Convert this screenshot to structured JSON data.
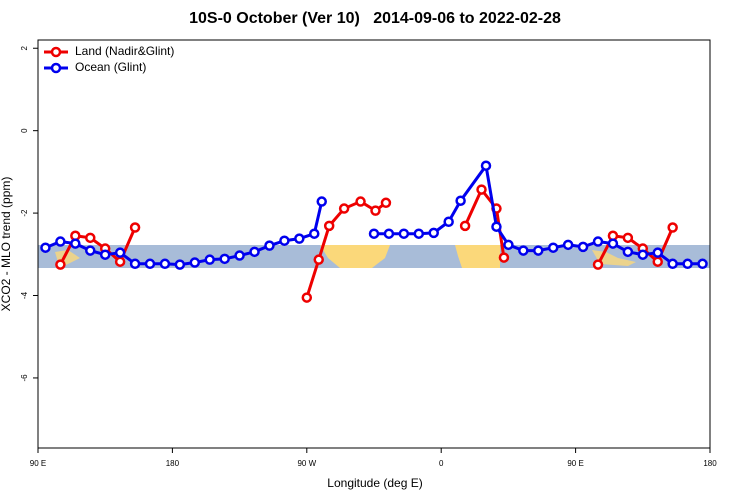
{
  "chart_data": {
    "type": "line",
    "title": "10S-0 October (Ver 10)   2014-09-06 to 2022-02-28",
    "xlabel": "Longitude (deg E)",
    "ylabel": "XCO2 - MLO trend (ppm)",
    "xlim": [
      90,
      540
    ],
    "ylim": [
      -7.7,
      2.2
    ],
    "xticks": [
      {
        "value": 90,
        "label": "90 E"
      },
      {
        "value": 180,
        "label": "180"
      },
      {
        "value": 270,
        "label": "90 W"
      },
      {
        "value": 360,
        "label": "0"
      },
      {
        "value": 450,
        "label": "90 E"
      },
      {
        "value": 540,
        "label": "180"
      }
    ],
    "yticks": [
      2,
      0,
      -2,
      -4,
      -6
    ],
    "legend": "top-left",
    "series": [
      {
        "name": "Land (Nadir&Glint)",
        "color": "#ee0000",
        "x": [
          105,
          115,
          125,
          135,
          145,
          155,
          null,
          270,
          278,
          285,
          295,
          306,
          316,
          323,
          null,
          376,
          387,
          397,
          402,
          null,
          465,
          475,
          485,
          495,
          505,
          515
        ],
        "values": [
          -3.25,
          -2.55,
          -2.6,
          -2.86,
          -3.18,
          -2.35,
          null,
          -4.05,
          -3.13,
          -2.31,
          -1.89,
          -1.72,
          -1.94,
          -1.75,
          null,
          -2.31,
          -1.43,
          -1.89,
          -3.08,
          null,
          -3.25,
          -2.55,
          -2.6,
          -2.86,
          -3.18,
          -2.35
        ]
      },
      {
        "name": "Ocean (Glint)",
        "color": "#0000ee",
        "x": [
          95,
          105,
          115,
          125,
          135,
          145,
          155,
          165,
          175,
          185,
          195,
          205,
          215,
          225,
          235,
          245,
          255,
          265,
          275,
          280,
          null,
          315,
          325,
          335,
          345,
          355,
          365,
          373,
          390,
          397,
          405,
          415,
          425,
          435,
          445,
          455,
          465,
          475,
          485,
          495,
          505,
          515,
          525,
          535
        ],
        "values": [
          -2.84,
          -2.69,
          -2.74,
          -2.91,
          -3.01,
          -2.96,
          -3.23,
          -3.23,
          -3.23,
          -3.25,
          -3.2,
          -3.13,
          -3.11,
          -3.03,
          -2.94,
          -2.79,
          -2.67,
          -2.62,
          -2.5,
          -1.72,
          null,
          -2.5,
          -2.5,
          -2.5,
          -2.5,
          -2.48,
          -2.21,
          -1.7,
          -0.85,
          -2.33,
          -2.77,
          -2.91,
          -2.91,
          -2.84,
          -2.77,
          -2.82,
          -2.69,
          -2.74,
          -2.94,
          -3.01,
          -2.96,
          -3.23,
          -3.23,
          -3.23
        ]
      }
    ]
  }
}
